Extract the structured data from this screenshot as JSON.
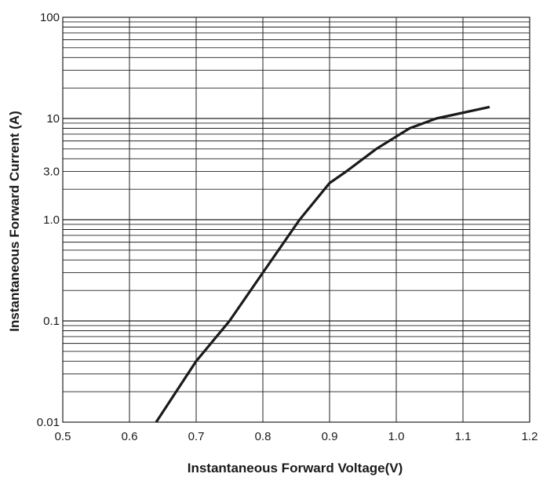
{
  "chart_data": {
    "type": "line",
    "title": "",
    "xlabel": "Instantaneous Forward Voltage(V)",
    "ylabel": "Instantaneous Forward Current (A)",
    "xlim": [
      0.5,
      1.2
    ],
    "ylim": [
      0.01,
      100
    ],
    "y_scale": "log",
    "grid": true,
    "x_ticks": [
      0.5,
      0.6,
      0.7,
      0.8,
      0.9,
      1.0,
      1.1,
      1.2
    ],
    "x_tick_labels": [
      "0.5",
      "0.6",
      "0.7",
      "0.8",
      "0.9",
      "1.0",
      "1.1",
      "1.2"
    ],
    "y_ticks": [
      0.01,
      0.1,
      1,
      3,
      10,
      100
    ],
    "y_tick_labels": [
      "0.01",
      "0.1",
      "1.0",
      "3.0",
      "10",
      "100"
    ],
    "line_color": "#1a1a1a",
    "grid_color": "#222222",
    "series": [
      {
        "x": [
          0.64,
          0.7,
          0.75,
          0.8,
          0.855,
          0.9,
          0.925,
          0.97,
          1.02,
          1.06,
          1.14
        ],
        "y": [
          0.01,
          0.04,
          0.1,
          0.3,
          1.0,
          2.3,
          3.0,
          5.0,
          8.0,
          10.0,
          13.0
        ]
      }
    ]
  }
}
